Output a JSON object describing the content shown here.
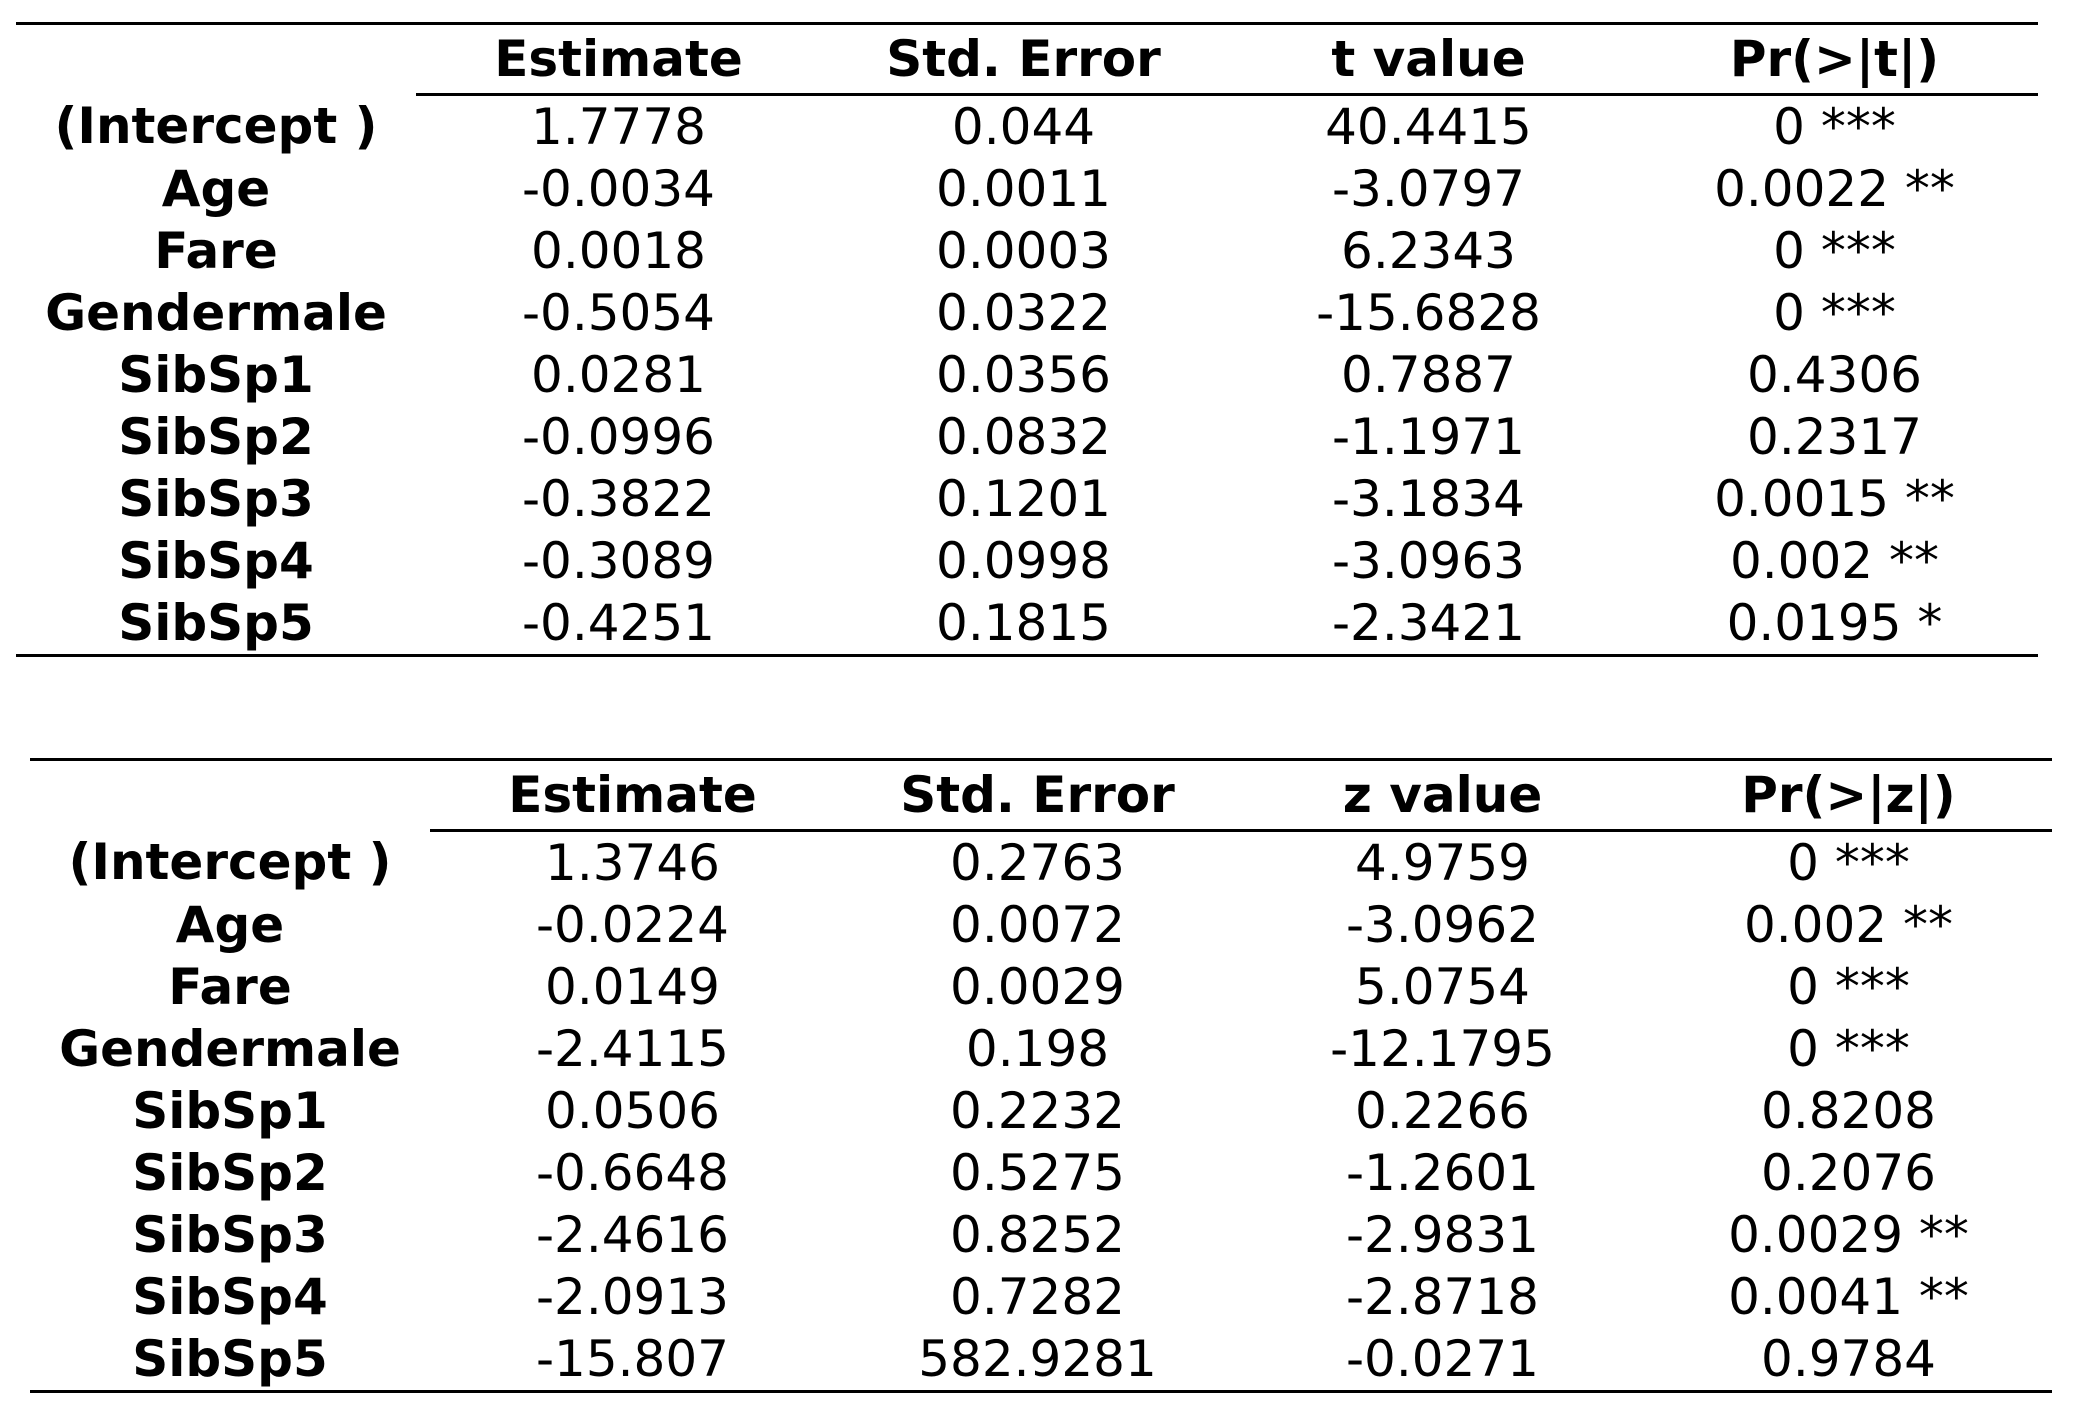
{
  "tables": [
    {
      "headers": [
        "Estimate",
        "Std. Error",
        "t value",
        "Pr(>|t|)"
      ],
      "rows": [
        {
          "label": "(Intercept )",
          "estimate": "1.7778",
          "std_error": "0.044",
          "stat": "40.4415",
          "p": "0 ***"
        },
        {
          "label": "Age",
          "estimate": "-0.0034",
          "std_error": "0.0011",
          "stat": "-3.0797",
          "p": "0.0022 **"
        },
        {
          "label": "Fare",
          "estimate": "0.0018",
          "std_error": "0.0003",
          "stat": "6.2343",
          "p": "0 ***"
        },
        {
          "label": "Gendermale",
          "estimate": "-0.5054",
          "std_error": "0.0322",
          "stat": "-15.6828",
          "p": "0 ***"
        },
        {
          "label": "SibSp1",
          "estimate": "0.0281",
          "std_error": "0.0356",
          "stat": "0.7887",
          "p": "0.4306"
        },
        {
          "label": "SibSp2",
          "estimate": "-0.0996",
          "std_error": "0.0832",
          "stat": "-1.1971",
          "p": "0.2317"
        },
        {
          "label": "SibSp3",
          "estimate": "-0.3822",
          "std_error": "0.1201",
          "stat": "-3.1834",
          "p": "0.0015 **"
        },
        {
          "label": "SibSp4",
          "estimate": "-0.3089",
          "std_error": "0.0998",
          "stat": "-3.0963",
          "p": "0.002 **"
        },
        {
          "label": "SibSp5",
          "estimate": "-0.4251",
          "std_error": "0.1815",
          "stat": "-2.3421",
          "p": "0.0195 *"
        }
      ]
    },
    {
      "headers": [
        "Estimate",
        "Std. Error",
        "z value",
        "Pr(>|z|)"
      ],
      "rows": [
        {
          "label": "(Intercept )",
          "estimate": "1.3746",
          "std_error": "0.2763",
          "stat": "4.9759",
          "p": "0 ***"
        },
        {
          "label": "Age",
          "estimate": "-0.0224",
          "std_error": "0.0072",
          "stat": "-3.0962",
          "p": "0.002 **"
        },
        {
          "label": "Fare",
          "estimate": "0.0149",
          "std_error": "0.0029",
          "stat": "5.0754",
          "p": "0 ***"
        },
        {
          "label": "Gendermale",
          "estimate": "-2.4115",
          "std_error": "0.198",
          "stat": "-12.1795",
          "p": "0 ***"
        },
        {
          "label": "SibSp1",
          "estimate": "0.0506",
          "std_error": "0.2232",
          "stat": "0.2266",
          "p": "0.8208"
        },
        {
          "label": "SibSp2",
          "estimate": "-0.6648",
          "std_error": "0.5275",
          "stat": "-1.2601",
          "p": "0.2076"
        },
        {
          "label": "SibSp3",
          "estimate": "-2.4616",
          "std_error": "0.8252",
          "stat": "-2.9831",
          "p": "0.0029 **"
        },
        {
          "label": "SibSp4",
          "estimate": "-2.0913",
          "std_error": "0.7282",
          "stat": "-2.8718",
          "p": "0.0041 **"
        },
        {
          "label": "SibSp5",
          "estimate": "-15.807",
          "std_error": "582.9281",
          "stat": "-0.0271",
          "p": "0.9784"
        }
      ]
    }
  ]
}
